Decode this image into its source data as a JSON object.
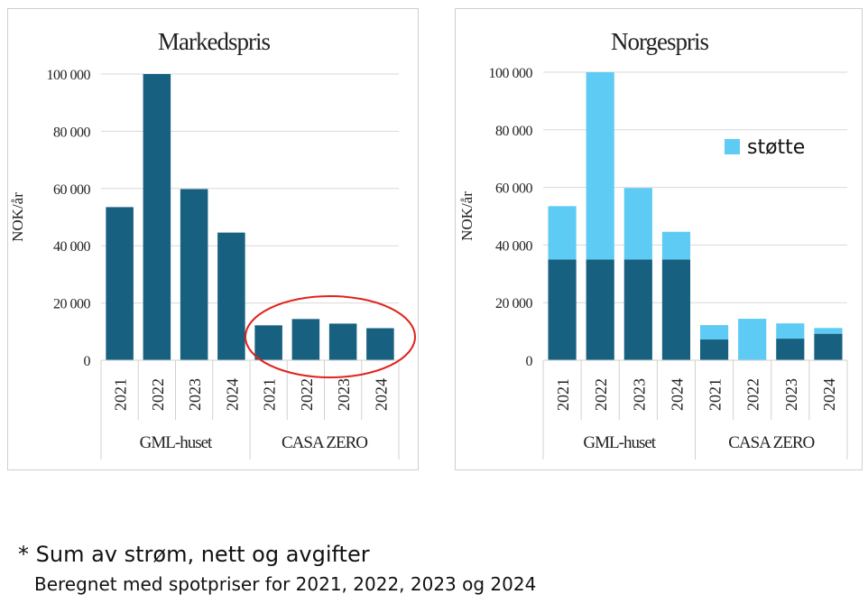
{
  "chart_data": [
    {
      "type": "bar",
      "title": "Markedspris",
      "ylabel": "NOK/år",
      "ylim": [
        0,
        100000
      ],
      "yticks": [
        "0",
        "20 000",
        "40 000",
        "60 000",
        "80 000",
        "100 000"
      ],
      "groups": [
        {
          "name": "GML-huset",
          "categories": [
            "2021",
            "2022",
            "2023",
            "2024"
          ]
        },
        {
          "name": "CASA ZERO",
          "categories": [
            "2021",
            "2022",
            "2023",
            "2024"
          ]
        }
      ],
      "series": [
        {
          "values": [
            53500,
            100000,
            59800,
            44600,
            12200,
            14400,
            12800,
            11200
          ],
          "color": "#17607f"
        }
      ],
      "annotation": "red ellipse around CASA ZERO bars"
    },
    {
      "type": "bar",
      "stacked": true,
      "title": "Norgespris",
      "ylabel": "NOK/år",
      "ylim": [
        0,
        100000
      ],
      "yticks": [
        "0",
        "20 000",
        "40 000",
        "60 000",
        "80 000",
        "100 000"
      ],
      "groups": [
        {
          "name": "GML-huset",
          "categories": [
            "2021",
            "2022",
            "2023",
            "2024"
          ]
        },
        {
          "name": "CASA ZERO",
          "categories": [
            "2021",
            "2022",
            "2023",
            "2024"
          ]
        }
      ],
      "series": [
        {
          "values": [
            35000,
            35000,
            35000,
            35000,
            7200,
            0,
            7500,
            9200
          ],
          "color": "#17607f"
        },
        {
          "name": "støtte",
          "values": [
            18500,
            65000,
            24800,
            9600,
            5000,
            14400,
            5300,
            2000
          ],
          "color": "#5ecbf4"
        }
      ],
      "legend": {
        "label": "støtte",
        "position": "upper-right"
      }
    }
  ],
  "footnote": {
    "line1": "* Sum av strøm, nett og avgifter",
    "line2": "Beregnet med spotpriser for 2021, 2022, 2023 og 2024"
  }
}
